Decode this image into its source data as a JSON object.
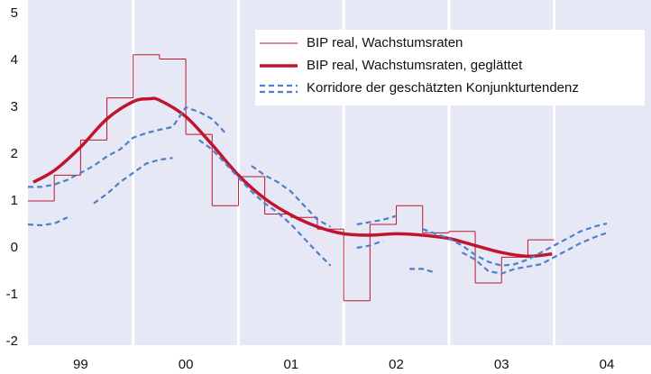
{
  "chart_data": {
    "type": "line",
    "xlim": [
      1999.0,
      2004.92
    ],
    "ylim": [
      -2,
      5
    ],
    "yticks": [
      -2,
      -1,
      0,
      1,
      2,
      3,
      4,
      5
    ],
    "xticks": [
      {
        "value": 1999.5,
        "label": "99"
      },
      {
        "value": 2000.5,
        "label": "00"
      },
      {
        "value": 2001.5,
        "label": "01"
      },
      {
        "value": 2002.5,
        "label": "02"
      },
      {
        "value": 2003.5,
        "label": "03"
      },
      {
        "value": 2004.5,
        "label": "04"
      }
    ],
    "vlines": [
      2000,
      2001,
      2002,
      2003,
      2004
    ],
    "background": "#e6e8f5",
    "legend": "upper right",
    "series": [
      {
        "name": "BIP real, Wachstumsraten",
        "color": "#c0152f",
        "style": "step",
        "width": 1,
        "x": [
          1999.0,
          1999.25,
          1999.5,
          1999.75,
          2000.0,
          2000.25,
          2000.5,
          2000.75,
          2001.0,
          2001.25,
          2001.5,
          2001.75,
          2002.0,
          2002.25,
          2002.5,
          2002.75,
          2003.0,
          2003.25,
          2003.5,
          2003.75
        ],
        "values": [
          1.0,
          1.55,
          2.3,
          3.2,
          4.12,
          4.03,
          2.42,
          0.9,
          1.52,
          0.72,
          0.65,
          0.4,
          -1.13,
          0.5,
          0.9,
          0.32,
          0.35,
          -0.75,
          -0.2,
          0.17
        ]
      },
      {
        "name": "BIP real, Wachstumsraten, geglättet",
        "color": "#c0152f",
        "style": "smooth",
        "width": 3.5,
        "x": [
          1999.05,
          1999.25,
          1999.5,
          1999.75,
          2000.0,
          2000.15,
          2000.25,
          2000.5,
          2000.75,
          2001.0,
          2001.25,
          2001.5,
          2001.75,
          2002.0,
          2002.25,
          2002.5,
          2002.75,
          2003.0,
          2003.25,
          2003.5,
          2003.75,
          2003.98
        ],
        "values": [
          1.4,
          1.65,
          2.15,
          2.75,
          3.12,
          3.18,
          3.15,
          2.8,
          2.2,
          1.55,
          1.05,
          0.7,
          0.45,
          0.3,
          0.27,
          0.3,
          0.27,
          0.2,
          0.05,
          -0.1,
          -0.18,
          -0.13
        ]
      },
      {
        "name": "Korridore der geschätzten Konjunkturtendenz",
        "color": "#4f7fc4",
        "style": "band",
        "width": 2.2,
        "x": [
          1999.0,
          1999.125,
          1999.25,
          1999.375,
          1999.5,
          1999.625,
          1999.75,
          1999.875,
          2000.0,
          2000.125,
          2000.25,
          2000.375,
          2000.5,
          2000.625,
          2000.75,
          2000.875,
          2001.0,
          2001.125,
          2001.25,
          2001.375,
          2001.5,
          2001.625,
          2001.75,
          2001.875,
          2002.0,
          2002.125,
          2002.25,
          2002.375,
          2002.5,
          2002.625,
          2002.75,
          2002.875,
          2003.0,
          2003.125,
          2003.25,
          2003.375,
          2003.5,
          2003.625,
          2003.75,
          2003.875,
          2004.0,
          2004.125,
          2004.25,
          2004.375,
          2004.5
        ],
        "upper": [
          1.3,
          1.3,
          1.35,
          1.45,
          1.6,
          1.75,
          1.95,
          2.1,
          2.35,
          2.45,
          2.52,
          2.58,
          3.0,
          2.9,
          2.75,
          2.45,
          null,
          1.75,
          1.55,
          1.4,
          1.2,
          0.9,
          0.6,
          0.45,
          null,
          0.5,
          0.55,
          0.6,
          0.68,
          null,
          0.4,
          0.3,
          0.2,
          0.05,
          -0.15,
          -0.3,
          -0.38,
          -0.35,
          -0.25,
          -0.1,
          0.05,
          0.2,
          0.35,
          0.45,
          0.52
        ],
        "lower": [
          0.5,
          0.48,
          0.52,
          0.65,
          null,
          0.95,
          1.15,
          1.4,
          1.6,
          1.8,
          1.88,
          1.92,
          null,
          2.3,
          2.1,
          1.8,
          1.5,
          1.2,
          0.95,
          0.75,
          0.5,
          0.2,
          -0.1,
          -0.38,
          null,
          0.0,
          0.05,
          0.15,
          null,
          -0.45,
          -0.45,
          -0.53,
          null,
          -0.1,
          -0.25,
          -0.5,
          -0.55,
          -0.45,
          -0.4,
          -0.35,
          -0.2,
          -0.05,
          0.1,
          0.22,
          0.32
        ]
      }
    ]
  }
}
